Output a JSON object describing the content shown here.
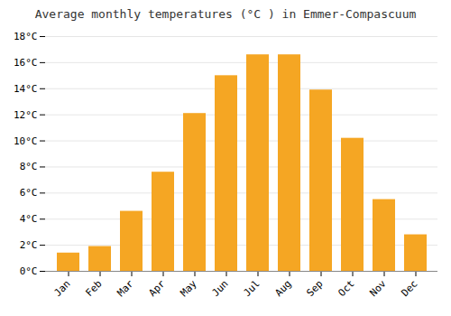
{
  "chart_data": {
    "type": "bar",
    "title": "Average monthly temperatures (°C ) in Emmer-Compascuum",
    "categories": [
      "Jan",
      "Feb",
      "Mar",
      "Apr",
      "May",
      "Jun",
      "Jul",
      "Aug",
      "Sep",
      "Oct",
      "Nov",
      "Dec"
    ],
    "values": [
      1.4,
      1.9,
      4.6,
      7.6,
      12.1,
      15.0,
      16.6,
      16.6,
      13.9,
      10.2,
      5.5,
      2.8
    ],
    "color": "#F5A623",
    "ylim": [
      0,
      18
    ],
    "yticks": [
      {
        "value": 0,
        "label": "0°C"
      },
      {
        "value": 2,
        "label": "2°C"
      },
      {
        "value": 4,
        "label": "4°C"
      },
      {
        "value": 6,
        "label": "6°C"
      },
      {
        "value": 8,
        "label": "8°C"
      },
      {
        "value": 10,
        "label": "10°C"
      },
      {
        "value": 12,
        "label": "12°C"
      },
      {
        "value": 14,
        "label": "14°C"
      },
      {
        "value": 16,
        "label": "16°C"
      },
      {
        "value": 18,
        "label": "18°C"
      }
    ],
    "grid": true
  }
}
